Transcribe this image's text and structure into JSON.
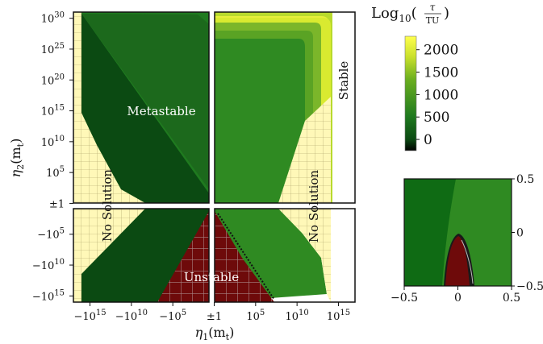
{
  "chart_data": [
    {
      "type": "heatmap",
      "xlabel": "η1(mt)",
      "ylabel": "η2(mt)",
      "x_ticks": [
        "−10^15",
        "−10^10",
        "−10^5",
        "±1",
        "10^5",
        "10^10",
        "10^15"
      ],
      "y_ticks": [
        "10^30",
        "10^25",
        "10^20",
        "10^15",
        "10^10",
        "10^5",
        "±1",
        "−10^5",
        "−10^10",
        "−10^15"
      ],
      "x_signed_log10_range": [
        -17,
        17
      ],
      "y_signed_log10_range": [
        -16,
        31
      ],
      "colorbar": {
        "title": "Log10(τ/TU)",
        "ticks": [
          0,
          500,
          1000,
          1500,
          2000
        ],
        "range": [
          -250,
          2300
        ],
        "colors": [
          "#000000",
          "#0b4a12",
          "#1f7a1f",
          "#6aae1f",
          "#c9e02c",
          "#ffff4d"
        ]
      },
      "regions": [
        {
          "label": "Metastable"
        },
        {
          "label": "Stable"
        },
        {
          "label": "No Solution"
        },
        {
          "label": "No Solution"
        },
        {
          "label": "Unstable"
        }
      ]
    },
    {
      "type": "heatmap",
      "x_ticks": [
        "−0.5",
        "0",
        "0.5"
      ],
      "y_ticks": [
        "0.5",
        "0",
        "−0.5"
      ],
      "xlim": [
        -0.5,
        0.5
      ],
      "ylim": [
        -0.5,
        0.5
      ]
    }
  ],
  "text": {
    "cb_log": "Log",
    "cb_sub": "10",
    "cb_num": "τ",
    "cb_den": "TU",
    "xlabel_eta": "η",
    "xlabel_sub": "1",
    "xlabel_arg": "(m",
    "xlabel_argsub": "t",
    "xlabel_close": ")",
    "ylabel_eta": "η",
    "ylabel_sub": "2",
    "ylabel_arg": "(m",
    "ylabel_argsub": "t",
    "ylabel_close": ")"
  }
}
